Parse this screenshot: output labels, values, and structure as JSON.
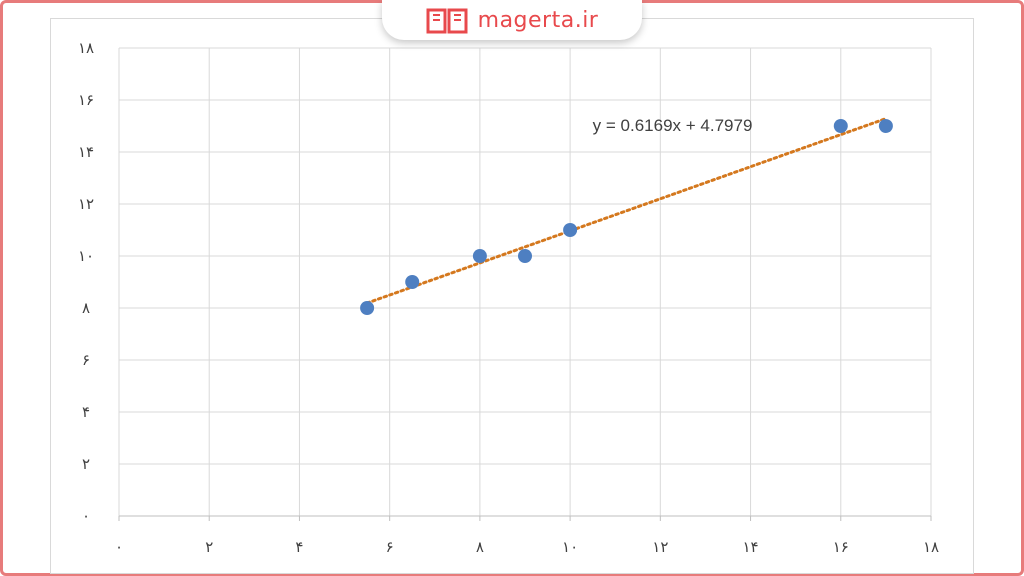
{
  "brand": {
    "name": "magerta.ir",
    "logo_icon": "open-book-icon",
    "color": "#e8494c"
  },
  "frame": {
    "border_color": "#e77b7b"
  },
  "chart_data": {
    "type": "scatter",
    "title": "",
    "xlabel": "",
    "ylabel": "",
    "xlim": [
      0,
      18
    ],
    "ylim": [
      0,
      18
    ],
    "grid": true,
    "x_ticks": [
      0,
      2,
      4,
      6,
      8,
      10,
      12,
      14,
      16,
      18
    ],
    "y_ticks": [
      0,
      2,
      4,
      6,
      8,
      10,
      12,
      14,
      16,
      18
    ],
    "x_tick_labels": [
      "۰",
      "۲",
      "۴",
      "۶",
      "۸",
      "۱۰",
      "۱۲",
      "۱۴",
      "۱۶",
      "۱۸"
    ],
    "y_tick_labels": [
      "۰",
      "۲",
      "۴",
      "۶",
      "۸",
      "۱۰",
      "۱۲",
      "۱۴",
      "۱۶",
      "۱۸"
    ],
    "series": [
      {
        "x": [
          5.5,
          6.5,
          8,
          9,
          10,
          16,
          17
        ],
        "y": [
          8,
          9,
          10,
          10,
          11,
          15,
          15
        ],
        "color": "#4e7fc1"
      }
    ],
    "trendline": {
      "type": "linear",
      "slope": 0.6169,
      "intercept": 4.7979,
      "x_range": [
        5.5,
        17
      ],
      "color": "#d4781e",
      "style": "dotted",
      "equation_label": "y = 0.6169x + 4.7979"
    }
  }
}
